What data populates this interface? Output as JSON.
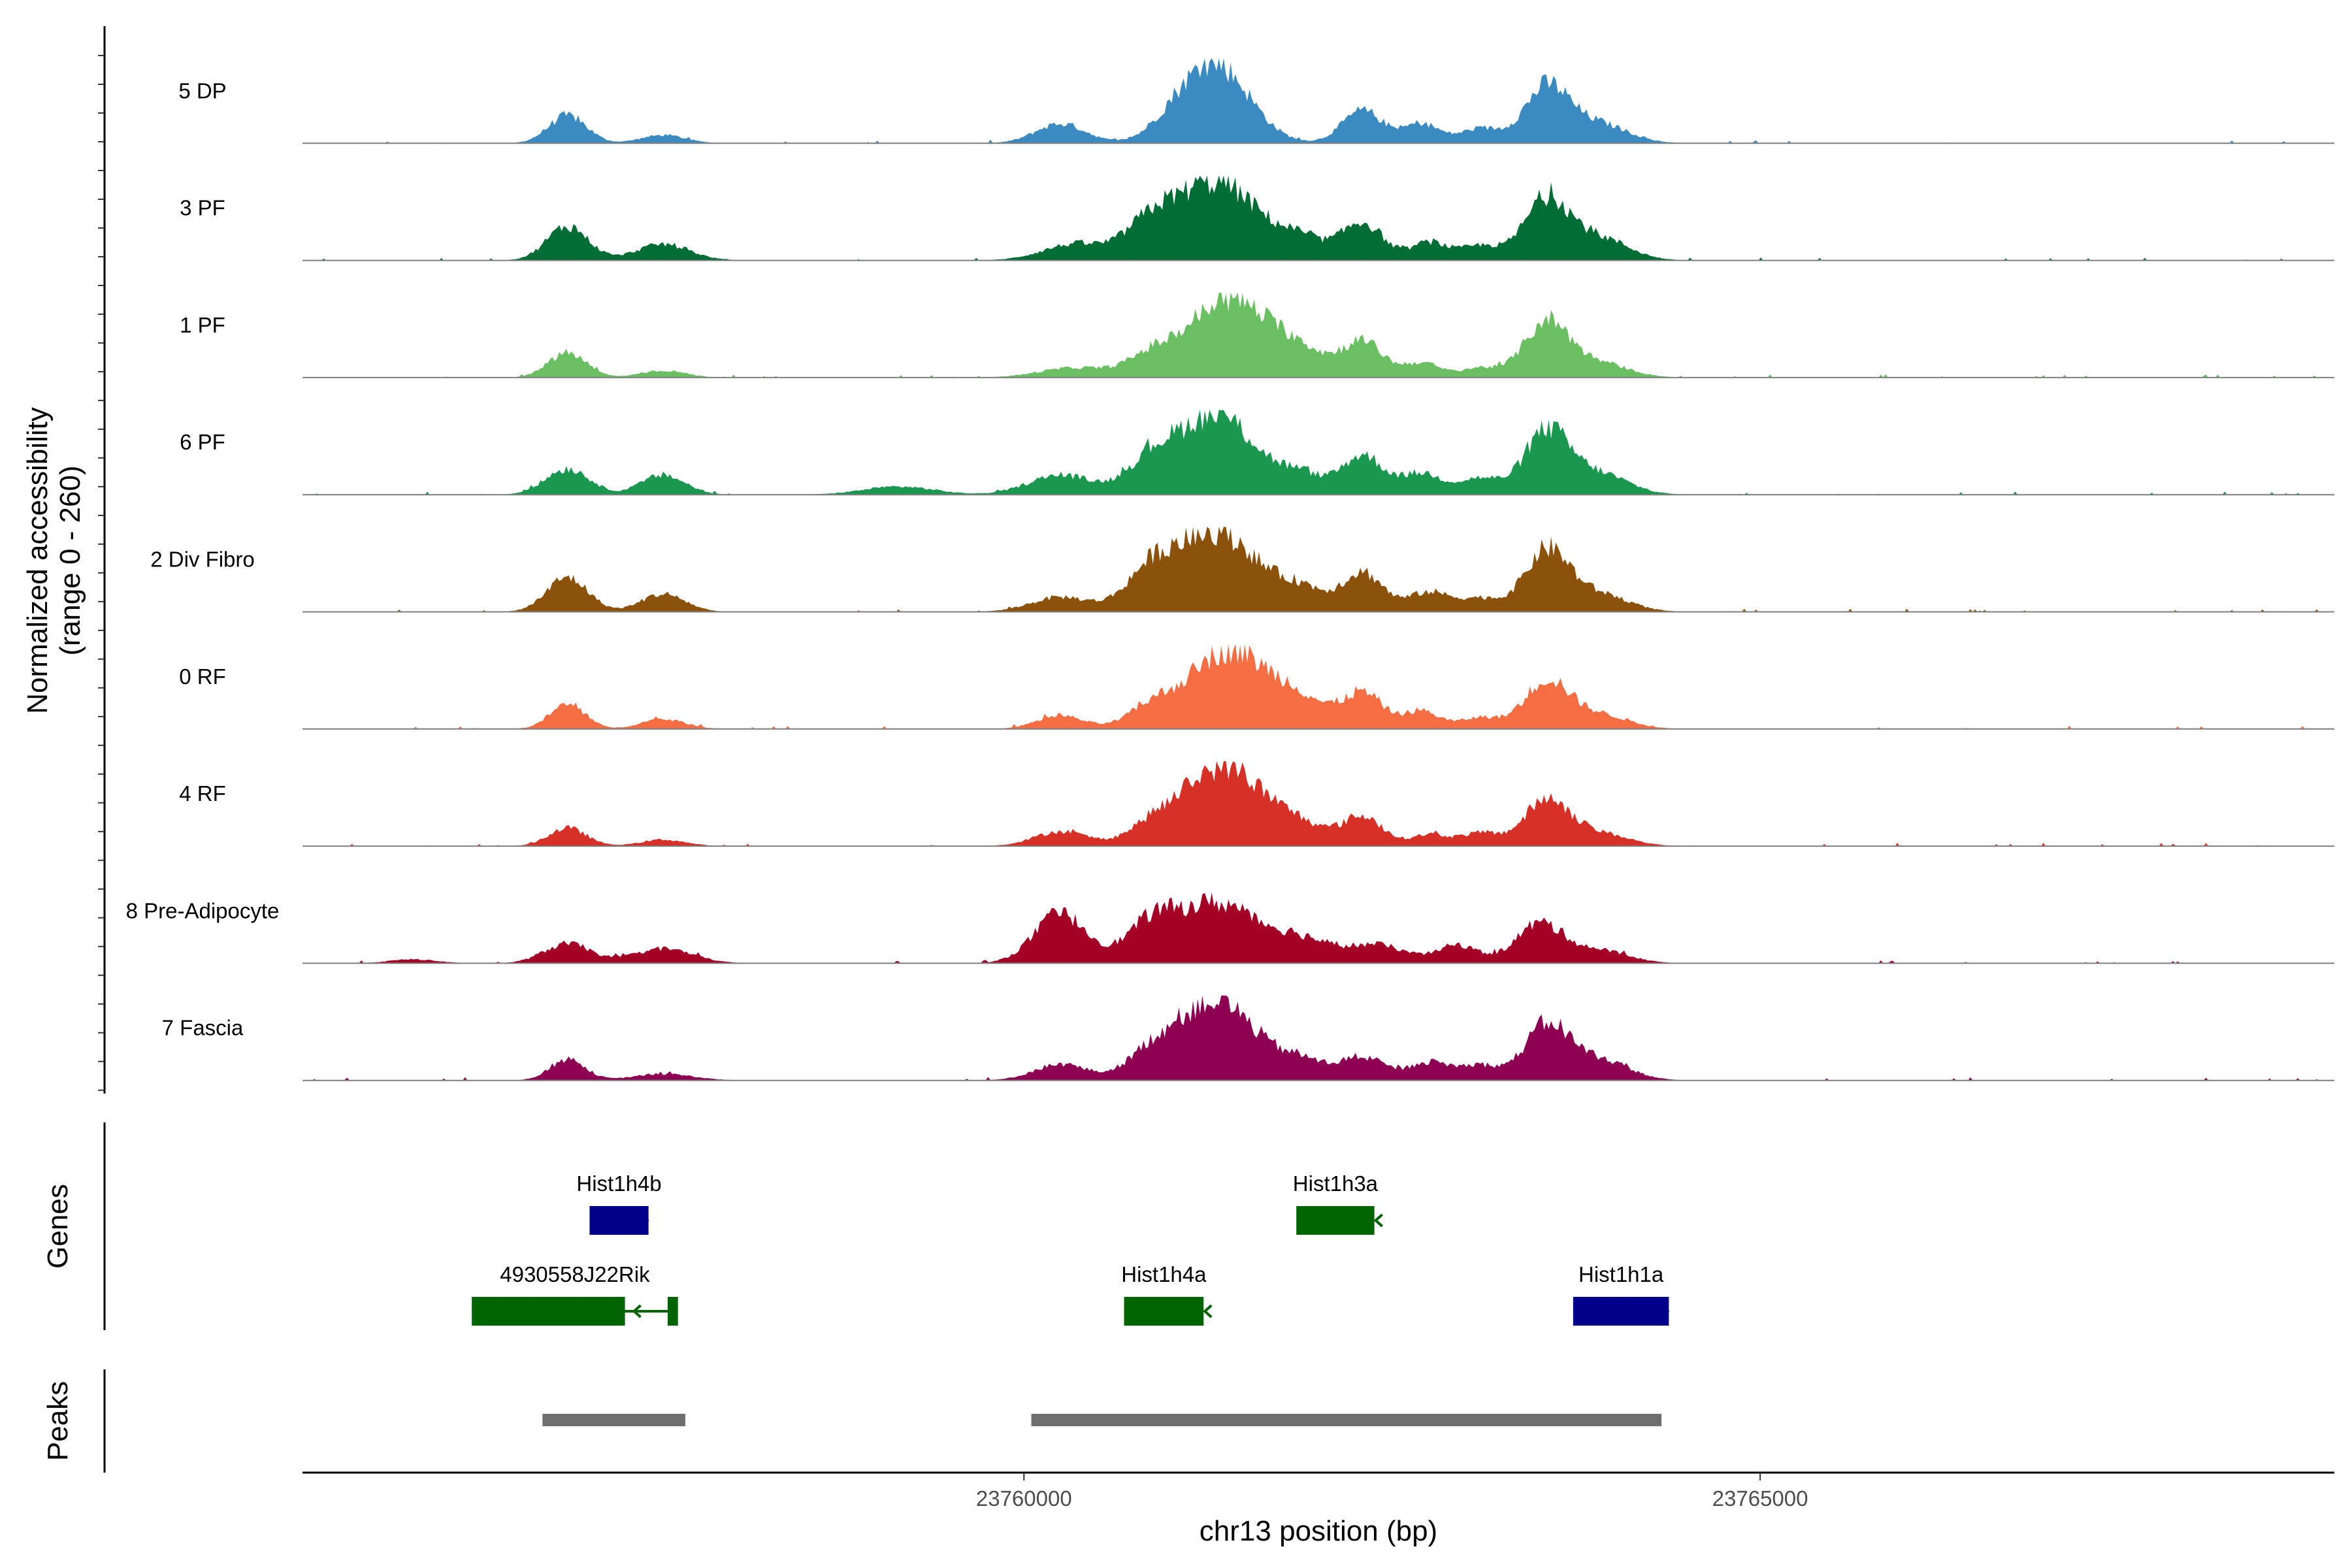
{
  "chart_data": {
    "type": "area",
    "description_title": "",
    "ylabel": "Normalized accessibility\n(range 0 - 260)",
    "ylabel_lines": [
      "Normalized accessibility",
      "(range 0 - 260)"
    ],
    "ylim": [
      0,
      260
    ],
    "xlabel": "chr13 position (bp)",
    "xlim": [
      23755100,
      23768900
    ],
    "x_ticks": [
      23760000,
      23765000
    ],
    "x_tick_labels": [
      "23760000",
      "23765000"
    ],
    "peak_positions": [
      23757320,
      23758050,
      23760300,
      23761300,
      23761850,
      23762300,
      23763100,
      23763550
    ],
    "tracks": [
      {
        "name": "5 DP",
        "color": "#3b8bc2",
        "peaks": [
          [
            23756900,
            85,
            130
          ],
          [
            23757550,
            25,
            150
          ],
          [
            23760250,
            60,
            170
          ],
          [
            23761000,
            35,
            150
          ],
          [
            23761300,
            240,
            230
          ],
          [
            23762300,
            100,
            140
          ],
          [
            23762700,
            60,
            120
          ],
          [
            23763100,
            45,
            140
          ],
          [
            23763550,
            170,
            150
          ],
          [
            23763900,
            60,
            200
          ]
        ]
      },
      {
        "name": "3 PF",
        "color": "#006d34",
        "peaks": [
          [
            23756900,
            105,
            140
          ],
          [
            23757550,
            50,
            180
          ],
          [
            23760350,
            50,
            220
          ],
          [
            23760850,
            75,
            160
          ],
          [
            23761300,
            240,
            300
          ],
          [
            23761900,
            50,
            160
          ],
          [
            23762300,
            115,
            140
          ],
          [
            23762750,
            55,
            120
          ],
          [
            23763100,
            45,
            140
          ],
          [
            23763550,
            185,
            150
          ],
          [
            23763900,
            70,
            200
          ]
        ]
      },
      {
        "name": "1 PF",
        "color": "#6abf62",
        "peaks": [
          [
            23756900,
            75,
            130
          ],
          [
            23757550,
            22,
            150
          ],
          [
            23760350,
            30,
            240
          ],
          [
            23760850,
            45,
            150
          ],
          [
            23761400,
            240,
            300
          ],
          [
            23761900,
            50,
            160
          ],
          [
            23762300,
            110,
            140
          ],
          [
            23762700,
            45,
            120
          ],
          [
            23763100,
            30,
            140
          ],
          [
            23763550,
            170,
            150
          ],
          [
            23763900,
            45,
            200
          ]
        ]
      },
      {
        "name": "6 PF",
        "color": "#1b9850",
        "peaks": [
          [
            23756900,
            80,
            150
          ],
          [
            23757550,
            60,
            150
          ],
          [
            23759150,
            25,
            240
          ],
          [
            23760250,
            60,
            220
          ],
          [
            23760850,
            75,
            160
          ],
          [
            23761300,
            245,
            280
          ],
          [
            23761900,
            50,
            150
          ],
          [
            23762300,
            120,
            140
          ],
          [
            23762700,
            65,
            140
          ],
          [
            23763100,
            50,
            140
          ],
          [
            23763550,
            190,
            150
          ],
          [
            23763900,
            65,
            200
          ]
        ]
      },
      {
        "name": "2 Div Fibro",
        "color": "#8c510a",
        "peaks": [
          [
            23756900,
            105,
            140
          ],
          [
            23757550,
            55,
            150
          ],
          [
            23760250,
            45,
            200
          ],
          [
            23760850,
            85,
            160
          ],
          [
            23761300,
            245,
            300
          ],
          [
            23761900,
            55,
            150
          ],
          [
            23762300,
            120,
            140
          ],
          [
            23762750,
            60,
            140
          ],
          [
            23763100,
            40,
            140
          ],
          [
            23763550,
            185,
            150
          ],
          [
            23763900,
            55,
            200
          ]
        ]
      },
      {
        "name": "0 RF",
        "color": "#f46d43",
        "peaks": [
          [
            23756900,
            75,
            120
          ],
          [
            23757550,
            30,
            150
          ],
          [
            23760250,
            40,
            160
          ],
          [
            23760850,
            45,
            150
          ],
          [
            23761400,
            240,
            300
          ],
          [
            23761900,
            55,
            160
          ],
          [
            23762300,
            110,
            140
          ],
          [
            23762700,
            55,
            120
          ],
          [
            23763100,
            35,
            140
          ],
          [
            23763550,
            145,
            150
          ],
          [
            23763900,
            45,
            200
          ]
        ]
      },
      {
        "name": "4 RF",
        "color": "#d73027",
        "peaks": [
          [
            23756900,
            55,
            130
          ],
          [
            23757550,
            20,
            150
          ],
          [
            23760250,
            45,
            180
          ],
          [
            23760850,
            35,
            150
          ],
          [
            23761350,
            245,
            300
          ],
          [
            23761900,
            40,
            160
          ],
          [
            23762300,
            90,
            140
          ],
          [
            23762750,
            35,
            120
          ],
          [
            23763100,
            40,
            140
          ],
          [
            23763550,
            140,
            150
          ],
          [
            23763900,
            40,
            200
          ]
        ]
      },
      {
        "name": "8 Pre-Adipocyte",
        "color": "#a50026",
        "peaks": [
          [
            23756900,
            60,
            160
          ],
          [
            23757550,
            45,
            200
          ],
          [
            23755850,
            12,
            160
          ],
          [
            23760250,
            150,
            180
          ],
          [
            23760850,
            90,
            160
          ],
          [
            23761300,
            185,
            300
          ],
          [
            23761900,
            60,
            200
          ],
          [
            23762400,
            55,
            200
          ],
          [
            23762950,
            55,
            140
          ],
          [
            23763500,
            120,
            160
          ],
          [
            23763900,
            40,
            200
          ]
        ]
      },
      {
        "name": "7 Fascia",
        "color": "#8e0152",
        "peaks": [
          [
            23756900,
            65,
            120
          ],
          [
            23757550,
            20,
            200
          ],
          [
            23760250,
            50,
            180
          ],
          [
            23760850,
            55,
            160
          ],
          [
            23761300,
            245,
            280
          ],
          [
            23761900,
            50,
            160
          ],
          [
            23762300,
            70,
            150
          ],
          [
            23762750,
            55,
            140
          ],
          [
            23763100,
            45,
            140
          ],
          [
            23763550,
            165,
            150
          ],
          [
            23763900,
            65,
            200
          ]
        ]
      }
    ],
    "genes_label": "Genes",
    "genes": [
      {
        "name": "Hist1h4b",
        "start": 23757050,
        "end": 23757450,
        "strand": "+",
        "color": "#00008b",
        "row": 1
      },
      {
        "name": "Hist1h3a",
        "start": 23761850,
        "end": 23762380,
        "strand": "-",
        "color": "#006400",
        "row": 1
      },
      {
        "name": "4930558J22Rik",
        "start": 23756250,
        "end": 23757650,
        "strand": "-",
        "color": "#006400",
        "row": 2,
        "exons": [
          [
            23756250,
            23757290
          ],
          [
            23757580,
            23757650
          ]
        ]
      },
      {
        "name": "Hist1h4a",
        "start": 23760680,
        "end": 23761220,
        "strand": "-",
        "color": "#006400",
        "row": 2
      },
      {
        "name": "Hist1h1a",
        "start": 23763730,
        "end": 23764380,
        "strand": "+",
        "color": "#00008b",
        "row": 2
      }
    ],
    "peaks_label": "Peaks",
    "peak_regions": [
      {
        "start": 23756730,
        "end": 23757700,
        "color": "#6e6e6e"
      },
      {
        "start": 23760050,
        "end": 23764330,
        "color": "#6e6e6e"
      }
    ]
  }
}
